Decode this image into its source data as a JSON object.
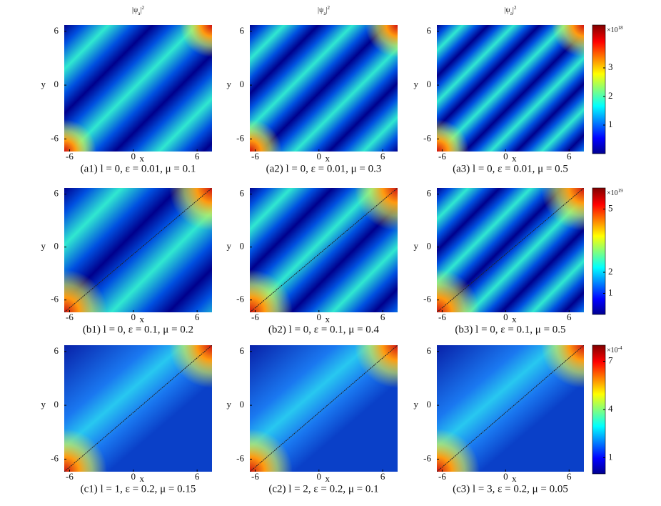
{
  "chart_data": [
    {
      "type": "heatmap",
      "title_parts": [
        "|ψ",
        "a",
        "|",
        "2"
      ],
      "caption": "(a1) l = 0, ε = 0.01, μ = 0.1",
      "xlabel": "x",
      "ylabel": "y",
      "xlim": [
        -6.5,
        7.4
      ],
      "ylim": [
        -7.4,
        6.7
      ],
      "xticks": [
        -6,
        0,
        6
      ],
      "yticks": [
        -6,
        0,
        6
      ]
    },
    {
      "type": "heatmap",
      "title_parts": [
        "|ψ",
        "a",
        "|",
        "2"
      ],
      "caption": "(a2) l = 0, ε = 0.01, μ = 0.3",
      "xlabel": "x",
      "ylabel": "y",
      "xlim": [
        -6.5,
        7.4
      ],
      "ylim": [
        -7.4,
        6.7
      ],
      "xticks": [
        -6,
        0,
        6
      ],
      "yticks": [
        -6,
        0,
        6
      ]
    },
    {
      "type": "heatmap",
      "title_parts": [
        "|ψ",
        "a",
        "|",
        "2"
      ],
      "caption": "(a3) l = 0, ε = 0.01, μ = 0.5",
      "xlabel": "x",
      "ylabel": "y",
      "xlim": [
        -6.5,
        7.4
      ],
      "ylim": [
        -7.4,
        6.7
      ],
      "xticks": [
        -6,
        0,
        6
      ],
      "yticks": [
        -6,
        0,
        6
      ],
      "colorbar": {
        "label": "×10",
        "exponent": "18",
        "lim": [
          0,
          4.5
        ],
        "ticks": [
          1,
          2,
          3
        ]
      }
    },
    {
      "type": "heatmap",
      "caption": "(b1) l = 0, ε = 0.1, μ = 0.2",
      "xlabel": "x",
      "ylabel": "y",
      "xlim": [
        -6.5,
        7.4
      ],
      "ylim": [
        -7.4,
        6.7
      ],
      "xticks": [
        -6,
        0,
        6
      ],
      "yticks": [
        -6,
        0,
        6
      ]
    },
    {
      "type": "heatmap",
      "caption": "(b2) l = 0, ε = 0.1, μ = 0.4",
      "xlabel": "x",
      "ylabel": "y",
      "xlim": [
        -6.5,
        7.4
      ],
      "ylim": [
        -7.4,
        6.7
      ],
      "xticks": [
        -6,
        0,
        6
      ],
      "yticks": [
        -6,
        0,
        6
      ]
    },
    {
      "type": "heatmap",
      "caption": "(b3) l = 0, ε = 0.1, μ = 0.5",
      "xlabel": "x",
      "ylabel": "y",
      "xlim": [
        -6.5,
        7.4
      ],
      "ylim": [
        -7.4,
        6.7
      ],
      "xticks": [
        -6,
        0,
        6
      ],
      "yticks": [
        -6,
        0,
        6
      ],
      "colorbar": {
        "label": "×10",
        "exponent": "19",
        "lim": [
          0,
          6
        ],
        "ticks": [
          1,
          2,
          5
        ]
      }
    },
    {
      "type": "heatmap",
      "caption": "(c1) l = 1, ε = 0.2, μ = 0.15",
      "xlabel": "x",
      "ylabel": "y",
      "xlim": [
        -6.5,
        7.4
      ],
      "ylim": [
        -7.4,
        6.7
      ],
      "xticks": [
        -6,
        0,
        6
      ],
      "yticks": [
        -6,
        0,
        6
      ]
    },
    {
      "type": "heatmap",
      "caption": "(c2) l = 2, ε = 0.2, μ = 0.1",
      "xlabel": "x",
      "ylabel": "y",
      "xlim": [
        -6.5,
        7.4
      ],
      "ylim": [
        -7.4,
        6.7
      ],
      "xticks": [
        -6,
        0,
        6
      ],
      "yticks": [
        -6,
        0,
        6
      ]
    },
    {
      "type": "heatmap",
      "caption": "(c3) l = 3, ε = 0.2, μ = 0.05",
      "xlabel": "x",
      "ylabel": "y",
      "xlim": [
        -6.5,
        7.4
      ],
      "ylim": [
        -7.4,
        6.7
      ],
      "xticks": [
        -6,
        0,
        6
      ],
      "yticks": [
        -6,
        0,
        6
      ],
      "colorbar": {
        "label": "×10",
        "exponent": "-4",
        "lim": [
          0,
          8
        ],
        "ticks": [
          1,
          4,
          7
        ]
      }
    }
  ]
}
